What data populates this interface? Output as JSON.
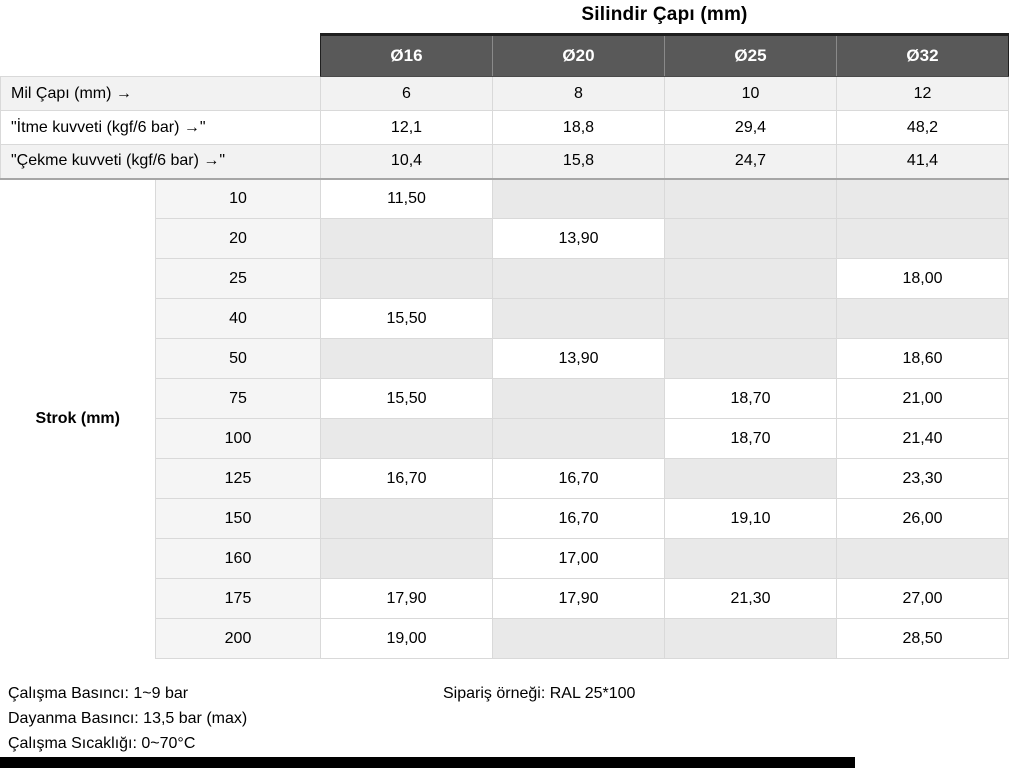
{
  "title": "Silindir Çapı (mm)",
  "columns": [
    "Ø16",
    "Ø20",
    "Ø25",
    "Ø32"
  ],
  "spec_rows": [
    {
      "label": "Mil Çapı (mm) →",
      "values": [
        "6",
        "8",
        "10",
        "12"
      ]
    },
    {
      "label": "\"İtme kuvveti (kgf/6 bar) →\"",
      "values": [
        "12,1",
        "18,8",
        "29,4",
        "48,2"
      ]
    },
    {
      "label": "\"Çekme kuvveti (kgf/6 bar) →\"",
      "values": [
        "10,4",
        "15,8",
        "24,7",
        "41,4"
      ]
    }
  ],
  "strok_section_label": "Strok (mm)",
  "strok_rows": [
    {
      "strok": "10",
      "values": [
        "11,50",
        "",
        "",
        ""
      ]
    },
    {
      "strok": "20",
      "values": [
        "",
        "13,90",
        "",
        ""
      ]
    },
    {
      "strok": "25",
      "values": [
        "",
        "",
        "",
        "18,00"
      ]
    },
    {
      "strok": "40",
      "values": [
        "15,50",
        "",
        "",
        ""
      ]
    },
    {
      "strok": "50",
      "values": [
        "",
        "13,90",
        "",
        "18,60"
      ]
    },
    {
      "strok": "75",
      "values": [
        "15,50",
        "",
        "18,70",
        "21,00"
      ]
    },
    {
      "strok": "100",
      "values": [
        "",
        "",
        "18,70",
        "21,40"
      ]
    },
    {
      "strok": "125",
      "values": [
        "16,70",
        "16,70",
        "",
        "23,30"
      ]
    },
    {
      "strok": "150",
      "values": [
        "",
        "16,70",
        "19,10",
        "26,00"
      ]
    },
    {
      "strok": "160",
      "values": [
        "",
        "17,00",
        "",
        ""
      ]
    },
    {
      "strok": "175",
      "values": [
        "17,90",
        "17,90",
        "21,30",
        "27,00"
      ]
    },
    {
      "strok": "200",
      "values": [
        "19,00",
        "",
        "",
        "28,50"
      ]
    }
  ],
  "footer": {
    "notes": [
      "Çalışma Basıncı: 1~9 bar",
      "Dayanma Basıncı: 13,5 bar (max)",
      "Çalışma Sıcaklığı: 0~70°C"
    ],
    "order_example": "Sipariş örneği: RAL 25*100"
  },
  "colors": {
    "header_bg": "#595959",
    "header_text": "#ffffff",
    "header_top_border": "#1f1f1f",
    "row_light": "#f2f2f2",
    "row_white": "#ffffff",
    "empty_cell": "#e9e9e9",
    "strok_col_bg": "#f5f5f5",
    "grid_border": "#d9d9d9",
    "section_divider": "#a6a6a6",
    "bottom_bar": "#000000"
  }
}
